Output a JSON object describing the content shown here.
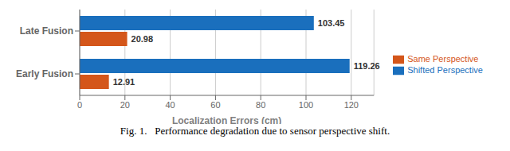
{
  "chart_data": {
    "type": "bar",
    "orientation": "horizontal",
    "categories": [
      "Late Fusion",
      "Early Fusion"
    ],
    "series": [
      {
        "name": "Shifted Perspective",
        "color": "#1a6fbd",
        "values": [
          103.45,
          119.26
        ]
      },
      {
        "name": "Same Perspective",
        "color": "#d4561a",
        "values": [
          20.98,
          12.91
        ]
      }
    ],
    "xlabel": "Localization Errors (cm)",
    "xlim": [
      0,
      130
    ],
    "xticks": [
      0,
      20,
      40,
      60,
      80,
      100,
      120
    ],
    "grid": true,
    "legend": "right",
    "data_labels": true,
    "annotations": [
      "Fig. 1.   Performance degradation due to sensor perspective shift."
    ]
  }
}
